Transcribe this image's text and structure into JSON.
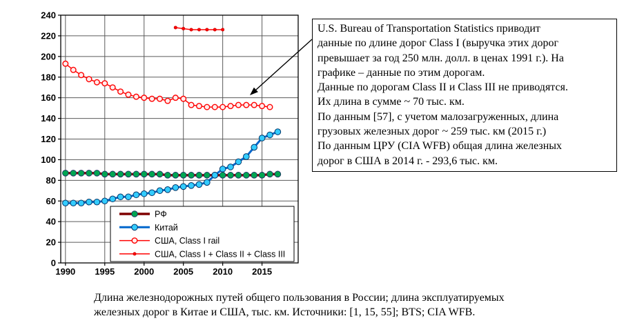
{
  "page": {
    "background": "#ffffff"
  },
  "chart_data": {
    "type": "line",
    "title": "",
    "xlabel": "",
    "ylabel": "",
    "units": "тыс. км",
    "xlim": [
      1989.4,
      2019.6
    ],
    "ylim": [
      0,
      240
    ],
    "ytick_step": 20,
    "xticks": [
      1990,
      1995,
      2000,
      2005,
      2010,
      2015
    ],
    "grid": true,
    "grid_color": "#5a5a5a",
    "legend_position": "inside-bottom-left",
    "series": [
      {
        "name": "РФ",
        "color": "#7f0000",
        "line_width": 3.5,
        "marker": {
          "shape": "circle",
          "size": 4.3,
          "fill": "#00a651",
          "stroke": "#1f3864",
          "stroke_width": 1
        },
        "x": [
          1990,
          1991,
          1992,
          1993,
          1994,
          1995,
          1996,
          1997,
          1998,
          1999,
          2000,
          2001,
          2002,
          2003,
          2004,
          2005,
          2006,
          2007,
          2008,
          2009,
          2010,
          2011,
          2012,
          2013,
          2014,
          2015,
          2016,
          2017
        ],
        "values": [
          87,
          87,
          87,
          87,
          87,
          86,
          86,
          86,
          86,
          86,
          86,
          86,
          86,
          85,
          85,
          85,
          85,
          85,
          85,
          85,
          85,
          85,
          85,
          85,
          85,
          85,
          86,
          86
        ]
      },
      {
        "name": "Китай",
        "color": "#0066cc",
        "line_width": 3,
        "marker": {
          "shape": "circle",
          "size": 4.3,
          "fill": "#33ccff",
          "stroke": "#003366",
          "stroke_width": 1
        },
        "x": [
          1990,
          1991,
          1992,
          1993,
          1994,
          1995,
          1996,
          1997,
          1998,
          1999,
          2000,
          2001,
          2002,
          2003,
          2004,
          2005,
          2006,
          2007,
          2008,
          2009,
          2010,
          2011,
          2012,
          2013,
          2014,
          2015,
          2016,
          2017
        ],
        "values": [
          58,
          58,
          58,
          59,
          59,
          60,
          62,
          64,
          64,
          66,
          67,
          68,
          70,
          71,
          73,
          74,
          75,
          76,
          78,
          85,
          91,
          93,
          98,
          103,
          112,
          121,
          124,
          127
        ]
      },
      {
        "name": "США, Class I rail",
        "color": "#ff0000",
        "line_width": 1.5,
        "marker": {
          "shape": "circle",
          "size": 3.8,
          "fill": "#ffecec",
          "stroke": "#ff0000",
          "stroke_width": 1.4
        },
        "x": [
          1990,
          1991,
          1992,
          1993,
          1994,
          1995,
          1996,
          1997,
          1998,
          1999,
          2000,
          2001,
          2002,
          2003,
          2004,
          2005,
          2006,
          2007,
          2008,
          2009,
          2010,
          2011,
          2012,
          2013,
          2014,
          2015,
          2016
        ],
        "values": [
          193,
          187,
          182,
          178,
          175,
          174,
          170,
          166,
          163,
          161,
          160,
          159,
          159,
          157,
          160,
          159,
          153,
          152,
          151,
          151,
          151,
          152,
          153,
          153,
          153,
          152,
          151
        ]
      },
      {
        "name": "США, Class I + Class II + Class III",
        "color": "#ff0000",
        "line_width": 1.5,
        "marker": {
          "shape": "circle",
          "size": 2.1,
          "fill": "#ff0000",
          "stroke": "#cc0000",
          "stroke_width": 0.8
        },
        "x": [
          2004,
          2005,
          2006,
          2007,
          2008,
          2009,
          2010
        ],
        "values": [
          228,
          227,
          226,
          226,
          226,
          226,
          226
        ]
      }
    ]
  },
  "annotation": {
    "lines": [
      "U.S. Bureau of Transportation Statistics приводит",
      "данные по длине дорог Class I (выручка этих дорог",
      "превышает за год 250 млн. долл. в ценах 1991 г.).  На",
      "графике – данные по этим дорогам.",
      "Данные по дорогам Class II и Class III не приводятся.",
      "Их длина в сумме ~ 70 тыс. км.",
      "По данным [57], с учетом малозагруженных, длина",
      "грузовых железных дорог ~ 259 тыс. км (2015 г.)",
      "По данным ЦРУ (CIA WFB) общая длина железных",
      "дорог в США в 2014 г. - 293,6 тыс. км."
    ]
  },
  "caption": {
    "lines": [
      "Длина железнодорожных путей общего пользования в России;  длина эксплуатируемых",
      "железных дорог в Китае и США,  тыс. км. Источники: [1, 15, 55]; BTS; CIA WFB."
    ]
  }
}
